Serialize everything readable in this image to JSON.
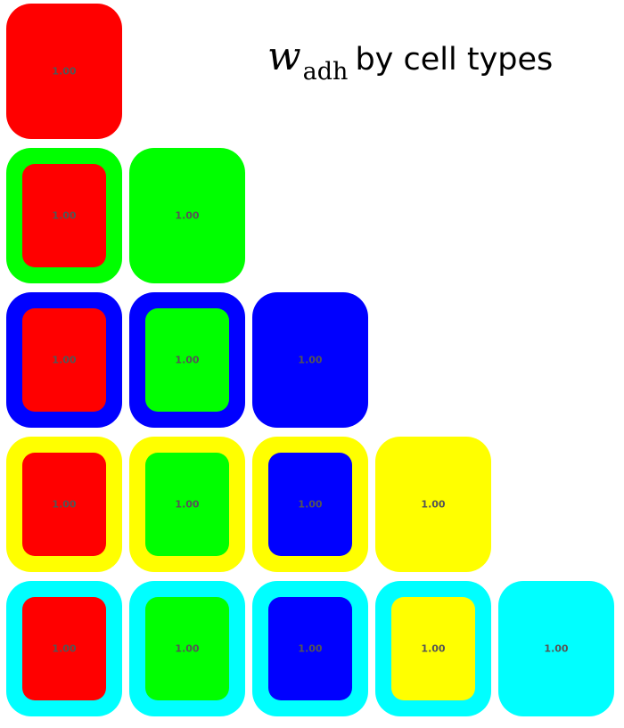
{
  "title": {
    "symbol": "w",
    "subscript": "adh",
    "suffix": "by cell types"
  },
  "cell_types": [
    {
      "color": "#ff0000"
    },
    {
      "color": "#00ff00"
    },
    {
      "color": "#0000ff"
    },
    {
      "color": "#ffff00"
    },
    {
      "color": "#00ffff"
    }
  ],
  "matrix": [
    [
      {
        "outer": "#ff0000",
        "inner": null,
        "value": "1.00"
      }
    ],
    [
      {
        "outer": "#00ff00",
        "inner": "#ff0000",
        "value": "1.00"
      },
      {
        "outer": "#00ff00",
        "inner": null,
        "value": "1.00"
      }
    ],
    [
      {
        "outer": "#0000ff",
        "inner": "#ff0000",
        "value": "1.00"
      },
      {
        "outer": "#0000ff",
        "inner": "#00ff00",
        "value": "1.00"
      },
      {
        "outer": "#0000ff",
        "inner": null,
        "value": "1.00"
      }
    ],
    [
      {
        "outer": "#ffff00",
        "inner": "#ff0000",
        "value": "1.00"
      },
      {
        "outer": "#ffff00",
        "inner": "#00ff00",
        "value": "1.00"
      },
      {
        "outer": "#ffff00",
        "inner": "#0000ff",
        "value": "1.00"
      },
      {
        "outer": "#ffff00",
        "inner": null,
        "value": "1.00"
      }
    ],
    [
      {
        "outer": "#00ffff",
        "inner": "#ff0000",
        "value": "1.00"
      },
      {
        "outer": "#00ffff",
        "inner": "#00ff00",
        "value": "1.00"
      },
      {
        "outer": "#00ffff",
        "inner": "#0000ff",
        "value": "1.00"
      },
      {
        "outer": "#00ffff",
        "inner": "#ffff00",
        "value": "1.00"
      },
      {
        "outer": "#00ffff",
        "inner": null,
        "value": "1.00"
      }
    ]
  ]
}
